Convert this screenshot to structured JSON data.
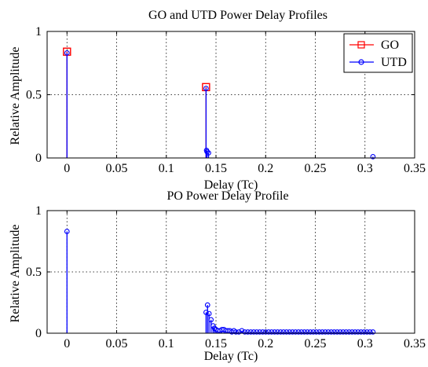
{
  "chart_data": [
    {
      "type": "stem",
      "title": "GO and UTD Power Delay Profiles",
      "xlabel": "Delay (Tc)",
      "ylabel": "Relative Amplitude",
      "xlim": [
        -0.02,
        0.35
      ],
      "ylim": [
        0,
        1
      ],
      "xticks": [
        0,
        0.05,
        0.1,
        0.15,
        0.2,
        0.25,
        0.3,
        0.35
      ],
      "xtick_labels": [
        "0",
        "0.05",
        "0.1",
        "0.15",
        "0.2",
        "0.25",
        "0.3",
        "0.35"
      ],
      "yticks": [
        0,
        0.5,
        1
      ],
      "ytick_labels": [
        "0",
        "0.5",
        "1"
      ],
      "grid": true,
      "legend_position": "top-right",
      "series": [
        {
          "name": "GO",
          "color": "#ff0000",
          "marker": "square",
          "x": [
            0,
            0.14
          ],
          "y": [
            0.84,
            0.56
          ]
        },
        {
          "name": "UTD",
          "color": "#0000ff",
          "marker": "circle",
          "x": [
            0,
            0.14,
            0.1405,
            0.141,
            0.1425,
            0.308
          ],
          "y": [
            0.83,
            0.55,
            0.06,
            0.05,
            0.04,
            0.01
          ]
        }
      ]
    },
    {
      "type": "stem",
      "title": "PO Power Delay Profile",
      "xlabel": "Delay (Tc)",
      "ylabel": "Relative Amplitude",
      "xlim": [
        -0.02,
        0.35
      ],
      "ylim": [
        0,
        1
      ],
      "xticks": [
        0,
        0.05,
        0.1,
        0.15,
        0.2,
        0.25,
        0.3,
        0.35
      ],
      "xtick_labels": [
        "0",
        "0.05",
        "0.1",
        "0.15",
        "0.2",
        "0.25",
        "0.3",
        "0.35"
      ],
      "yticks": [
        0,
        0.5,
        1
      ],
      "ytick_labels": [
        "0",
        "0.5",
        "1"
      ],
      "grid": true,
      "series": [
        {
          "color": "#0000ff",
          "marker": "circle",
          "x": [
            0,
            0.14,
            0.1415,
            0.143,
            0.145,
            0.147,
            0.1485,
            0.15,
            0.152,
            0.154,
            0.156,
            0.158,
            0.16,
            0.162,
            0.164,
            0.166,
            0.168,
            0.17,
            0.173,
            0.176,
            0.179,
            0.182,
            0.185,
            0.188,
            0.191,
            0.194,
            0.197,
            0.2,
            0.203,
            0.206,
            0.209,
            0.212,
            0.215,
            0.218,
            0.221,
            0.224,
            0.227,
            0.23,
            0.233,
            0.236,
            0.239,
            0.242,
            0.245,
            0.248,
            0.251,
            0.254,
            0.257,
            0.26,
            0.263,
            0.266,
            0.269,
            0.272,
            0.275,
            0.278,
            0.281,
            0.284,
            0.287,
            0.29,
            0.293,
            0.296,
            0.299,
            0.302,
            0.305,
            0.308
          ],
          "y": [
            0.83,
            0.17,
            0.23,
            0.16,
            0.11,
            0.06,
            0.04,
            0.03,
            0.02,
            0.02,
            0.03,
            0.03,
            0.02,
            0.02,
            0.02,
            0.01,
            0.02,
            0.01,
            0.01,
            0.02,
            0.01,
            0.01,
            0.01,
            0.01,
            0.01,
            0.01,
            0.01,
            0.01,
            0.01,
            0.01,
            0.01,
            0.01,
            0.01,
            0.01,
            0.01,
            0.01,
            0.01,
            0.01,
            0.01,
            0.01,
            0.01,
            0.01,
            0.01,
            0.01,
            0.01,
            0.01,
            0.01,
            0.01,
            0.01,
            0.01,
            0.01,
            0.01,
            0.01,
            0.01,
            0.01,
            0.01,
            0.01,
            0.01,
            0.01,
            0.01,
            0.01,
            0.01,
            0.01,
            0.01
          ]
        }
      ]
    }
  ]
}
